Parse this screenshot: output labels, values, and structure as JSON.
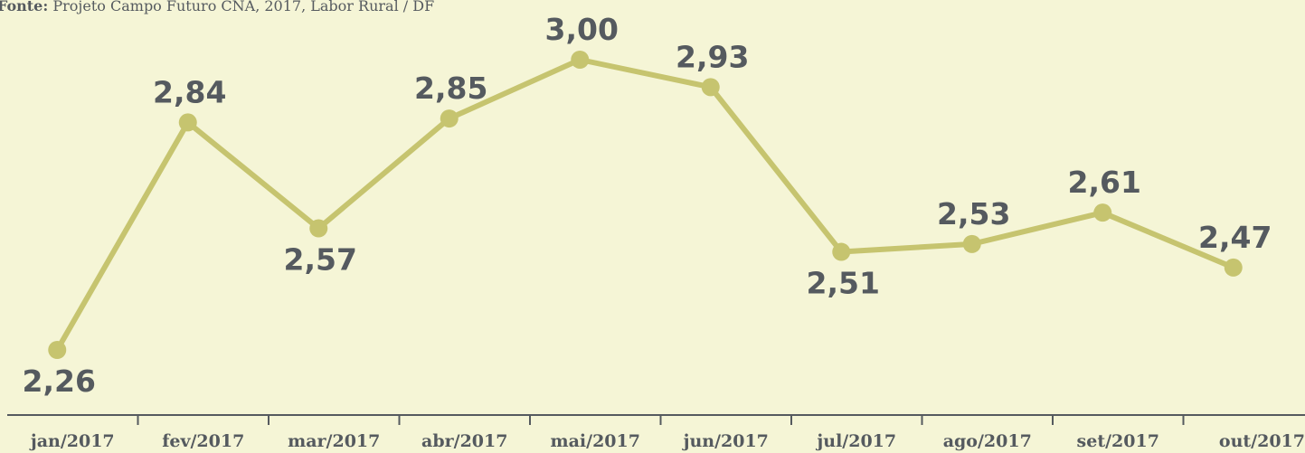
{
  "chart_data": {
    "type": "line",
    "source_label": "Fonte:",
    "source": "Projeto Campo Futuro CNA, 2017, Labor Rural / DF",
    "categories": [
      "jan/2017",
      "fev/2017",
      "mar/2017",
      "abr/2017",
      "mai/2017",
      "jun/2017",
      "jul/2017",
      "ago/2017",
      "set/2017",
      "out/2017"
    ],
    "series": [
      {
        "color": "#c6c46f",
        "values": [
          2.26,
          2.84,
          2.57,
          2.85,
          3.0,
          2.93,
          2.51,
          2.53,
          2.61,
          2.47
        ],
        "value_labels": [
          "2,26",
          "2,84",
          "2,57",
          "2,85",
          "3,00",
          "2,93",
          "2,51",
          "2,53",
          "2,61",
          "2,47"
        ]
      }
    ]
  }
}
